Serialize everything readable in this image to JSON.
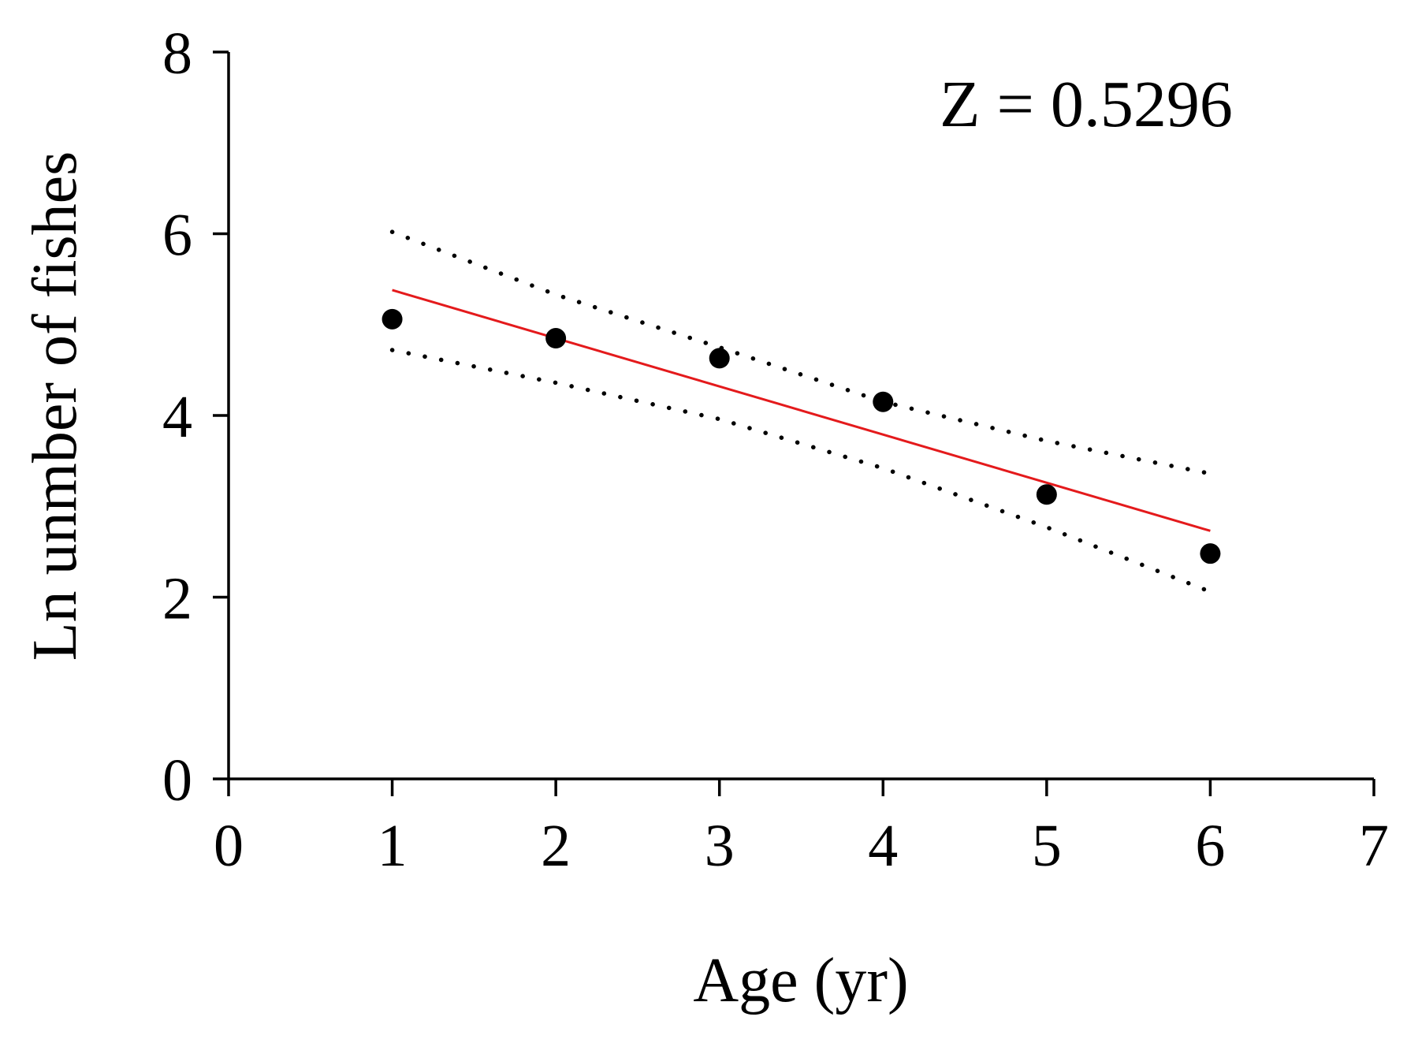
{
  "chart_data": {
    "type": "scatter",
    "title": "",
    "xlabel": "Age (yr)",
    "ylabel": "Ln unmber of fishes",
    "xlim": [
      0,
      7
    ],
    "ylim": [
      0,
      8
    ],
    "x_ticks": [
      "0",
      "1",
      "2",
      "3",
      "4",
      "5",
      "6",
      "7"
    ],
    "y_ticks": [
      "0",
      "2",
      "4",
      "6",
      "8"
    ],
    "grid": false,
    "annotation": "Z = 0.5296",
    "series": [
      {
        "name": "Observed",
        "kind": "points",
        "color": "#000000",
        "x": [
          1,
          2,
          3,
          4,
          5,
          6
        ],
        "y": [
          5.06,
          4.85,
          4.63,
          4.15,
          3.13,
          2.48
        ]
      },
      {
        "name": "Regression line",
        "kind": "line",
        "color": "#e41a1c",
        "x": [
          1,
          6
        ],
        "y": [
          5.38,
          2.73
        ]
      },
      {
        "name": "Upper confidence band",
        "kind": "dotted",
        "color": "#000000",
        "x": [
          1,
          2,
          3,
          4,
          5,
          6
        ],
        "y": [
          6.02,
          5.33,
          4.75,
          4.15,
          3.72,
          3.36
        ]
      },
      {
        "name": "Lower confidence band",
        "kind": "dotted",
        "color": "#000000",
        "x": [
          1,
          2,
          3,
          4,
          5,
          6
        ],
        "y": [
          4.72,
          4.36,
          3.96,
          3.42,
          2.77,
          2.06
        ]
      }
    ]
  }
}
